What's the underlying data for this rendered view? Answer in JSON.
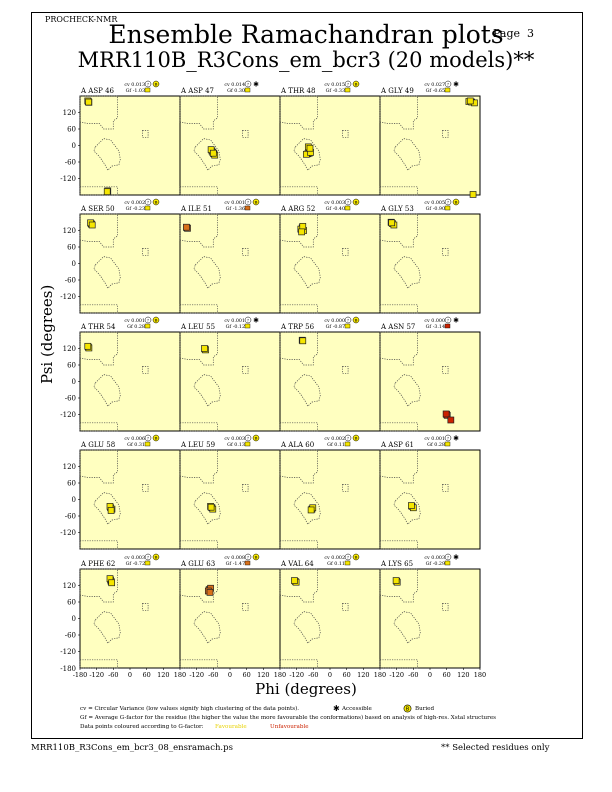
{
  "header": {
    "program": "PROCHECK-NMR",
    "page_label": "Page",
    "page_number": "3",
    "title": "Ensemble Ramachandran plots",
    "subtitle": "MRR110B_R3Cons_em_bcr3 (20 models)**"
  },
  "axes": {
    "xlabel": "Phi (degrees)",
    "ylabel": "Psi (degrees)",
    "xticks": [
      "-180",
      "-120",
      "-60",
      "0",
      "60",
      "120",
      "180"
    ],
    "yticks": [
      "120",
      "60",
      "0",
      "-60",
      "-120"
    ],
    "ybottom": "-180"
  },
  "colors": {
    "panel_bg": "#ffffc0",
    "favourable": "#f5e600",
    "unfavourable": "#cc2200",
    "intermediate": "#d8701a",
    "boundary": "#444444"
  },
  "legend": {
    "cv_text": "cv = Circular Variance (low values signify high clustering of the data points).",
    "accessible": "Accessible",
    "buried": "Buried",
    "gf_text": "Gf = Average G-factor for the residue (the higher the value the more favourable the conformations) based on analysis of high-res. Xstal structures",
    "colour_text": "Data points coloured according to G-factor:",
    "favourable": "Favourable",
    "unfavourable": "Unfavourable"
  },
  "footer": {
    "filename": "MRR110B_R3Cons_em_bcr3_08_ensramach.ps",
    "note": "** Selected residues only"
  },
  "chart_data": {
    "type": "scatter",
    "xlim": [
      -180,
      180
    ],
    "ylim": [
      -180,
      180
    ],
    "panels": [
      {
        "label": "A ASP 46",
        "cv": "cv 0.013",
        "gf": "Gf -1.03",
        "acc": "buried",
        "gf_color": "fav",
        "points": [
          [
            -150,
            160
          ],
          [
            -148,
            157
          ],
          [
            -152,
            162
          ],
          [
            -149,
            158
          ],
          [
            -80,
            -165
          ],
          [
            -82,
            -168
          ]
        ]
      },
      {
        "label": "A ASP 47",
        "cv": "cv 0.014",
        "gf": "Gf 0.30",
        "acc": "accessible",
        "gf_color": "fav",
        "points": [
          [
            -65,
            -20
          ],
          [
            -62,
            -25
          ],
          [
            -58,
            -30
          ],
          [
            -55,
            -35
          ],
          [
            -68,
            -15
          ],
          [
            -60,
            -28
          ]
        ]
      },
      {
        "label": "A THR 48",
        "cv": "cv 0.015",
        "gf": "Gf -0.33",
        "acc": "buried",
        "gf_color": "fav",
        "points": [
          [
            -80,
            -30
          ],
          [
            -75,
            -28
          ],
          [
            -85,
            -32
          ],
          [
            -70,
            -25
          ],
          [
            -78,
            -5
          ],
          [
            -72,
            -10
          ]
        ]
      },
      {
        "label": "A GLY 49",
        "cv": "cv 0.027",
        "gf": "Gf -0.65",
        "acc": "accessible",
        "gf_color": "fav",
        "points": [
          [
            140,
            160
          ],
          [
            150,
            158
          ],
          [
            160,
            155
          ],
          [
            145,
            162
          ],
          [
            155,
            -178
          ]
        ]
      },
      {
        "label": "A SER 50",
        "cv": "cv 0.002",
        "gf": "Gf -0.23",
        "acc": "buried",
        "gf_color": "fav",
        "points": [
          [
            -140,
            145
          ],
          [
            -138,
            142
          ],
          [
            -142,
            148
          ],
          [
            -136,
            140
          ]
        ]
      },
      {
        "label": "A ILE 51",
        "cv": "cv 0.001",
        "gf": "Gf -1.36",
        "acc": "buried",
        "gf_color": "mid",
        "points": [
          [
            -155,
            130
          ],
          [
            -153,
            128
          ],
          [
            -157,
            132
          ]
        ]
      },
      {
        "label": "A ARG 52",
        "cv": "cv 0.003",
        "gf": "Gf -0.40",
        "acc": "buried",
        "gf_color": "fav",
        "points": [
          [
            -100,
            130
          ],
          [
            -95,
            120
          ],
          [
            -105,
            125
          ],
          [
            -98,
            135
          ],
          [
            -102,
            115
          ]
        ]
      },
      {
        "label": "A GLY 53",
        "cv": "cv 0.005",
        "gf": "Gf -0.90",
        "acc": "buried",
        "gf_color": "fav",
        "points": [
          [
            -140,
            150
          ],
          [
            -135,
            145
          ],
          [
            -130,
            140
          ],
          [
            -138,
            148
          ]
        ]
      },
      {
        "label": "A THR 54",
        "cv": "cv 0.001",
        "gf": "Gf 0.28",
        "acc": "buried",
        "gf_color": "fav",
        "points": [
          [
            -150,
            125
          ],
          [
            -148,
            122
          ],
          [
            -152,
            128
          ]
        ]
      },
      {
        "label": "A LEU 55",
        "cv": "cv 0.001",
        "gf": "Gf -0.12",
        "acc": "accessible",
        "gf_color": "fav",
        "points": [
          [
            -90,
            118
          ],
          [
            -88,
            115
          ],
          [
            -92,
            120
          ]
        ]
      },
      {
        "label": "A TRP 56",
        "cv": "cv 0.000",
        "gf": "Gf -0.87",
        "acc": "buried",
        "gf_color": "fav",
        "points": [
          [
            -100,
            150
          ],
          [
            -98,
            148
          ]
        ]
      },
      {
        "label": "A ASN 57",
        "cv": "cv 0.000",
        "gf": "Gf -3.14",
        "acc": "accessible",
        "gf_color": "unfav",
        "points": [
          [
            60,
            -120
          ],
          [
            62,
            -123
          ],
          [
            58,
            -118
          ],
          [
            75,
            -140
          ]
        ]
      },
      {
        "label": "A GLU 58",
        "cv": "cv 0.006",
        "gf": "Gf 0.31",
        "acc": "buried",
        "gf_color": "fav",
        "points": [
          [
            -70,
            -30
          ],
          [
            -65,
            -35
          ],
          [
            -72,
            -25
          ],
          [
            -68,
            -40
          ]
        ]
      },
      {
        "label": "A LEU 59",
        "cv": "cv 0.003",
        "gf": "Gf 0.13",
        "acc": "buried",
        "gf_color": "fav",
        "points": [
          [
            -70,
            -25
          ],
          [
            -65,
            -30
          ],
          [
            -62,
            -35
          ],
          [
            -68,
            -28
          ]
        ]
      },
      {
        "label": "A ALA 60",
        "cv": "cv 0.002",
        "gf": "Gf 0.11",
        "acc": "buried",
        "gf_color": "fav",
        "points": [
          [
            -65,
            -35
          ],
          [
            -62,
            -30
          ],
          [
            -68,
            -38
          ]
        ]
      },
      {
        "label": "A ASP 61",
        "cv": "cv 0.001",
        "gf": "Gf 0.28",
        "acc": "accessible",
        "gf_color": "fav",
        "points": [
          [
            -65,
            -25
          ],
          [
            -60,
            -30
          ],
          [
            -67,
            -22
          ]
        ]
      },
      {
        "label": "A PHE 62",
        "cv": "cv 0.003",
        "gf": "Gf -0.72",
        "acc": "buried",
        "gf_color": "fav",
        "points": [
          [
            -70,
            140
          ],
          [
            -68,
            135
          ],
          [
            -72,
            145
          ],
          [
            -66,
            130
          ]
        ]
      },
      {
        "label": "A GLU 63",
        "cv": "cv 0.008",
        "gf": "Gf -1.47",
        "acc": "buried",
        "gf_color": "mid",
        "points": [
          [
            -75,
            105
          ],
          [
            -70,
            110
          ],
          [
            -78,
            100
          ],
          [
            -72,
            95
          ]
        ]
      },
      {
        "label": "A VAL 64",
        "cv": "cv 0.002",
        "gf": "Gf 0.11",
        "acc": "buried",
        "gf_color": "fav",
        "points": [
          [
            -125,
            135
          ],
          [
            -122,
            132
          ],
          [
            -128,
            138
          ]
        ]
      },
      {
        "label": "A LYS 65",
        "cv": "cv 0.003",
        "gf": "Gf -0.29",
        "acc": "accessible",
        "gf_color": "fav",
        "points": [
          [
            -120,
            135
          ],
          [
            -118,
            132
          ],
          [
            -122,
            138
          ]
        ]
      }
    ]
  }
}
